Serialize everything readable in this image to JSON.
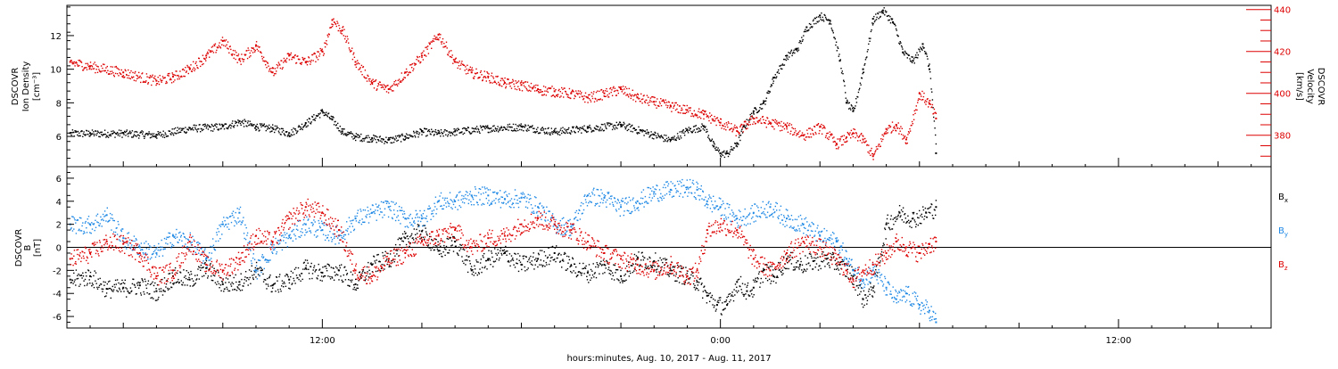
{
  "figure": {
    "xlabel": "hours:minutes, Aug. 10, 2017 - Aug. 11, 2017",
    "x_ticks": [
      {
        "hours": 12,
        "label": "12:00"
      },
      {
        "hours": 24,
        "label": "0:00"
      },
      {
        "hours": 36,
        "label": "12:00"
      }
    ],
    "x_range_hours": [
      4.3,
      40.6
    ]
  },
  "colors": {
    "black": "#000000",
    "red": "#dd0000",
    "blue": "#1e88e5"
  },
  "chart_data": [
    {
      "type": "scatter",
      "panel": "plasma",
      "left_axis": {
        "label_lines": [
          "DSCOVR",
          "Ion Density",
          "[cm⁻³]"
        ],
        "ylim": [
          4.2,
          13.8
        ],
        "ticks": [
          "6",
          "8",
          "10",
          "12"
        ],
        "tick_values": [
          6,
          8,
          10,
          12
        ]
      },
      "right_axis": {
        "label_lines": [
          "DSCOVR",
          "Velocity",
          "[km/s]"
        ],
        "ylim": [
          365,
          442
        ],
        "ticks": [
          "380",
          "400",
          "420",
          "440"
        ],
        "tick_values": [
          380,
          400,
          420,
          440
        ]
      },
      "series": [
        {
          "color": "black",
          "axis": "left",
          "x_hours": [
            4.4,
            5.0,
            6.0,
            7.0,
            8.0,
            9.0,
            9.5,
            10.0,
            10.5,
            11.0,
            11.5,
            12.0,
            12.3,
            12.6,
            13.0,
            13.5,
            14.0,
            14.5,
            15.0,
            15.5,
            16.0,
            17.0,
            18.0,
            19.0,
            20.0,
            21.0,
            22.0,
            22.5,
            23.0,
            23.5,
            23.8,
            24.0,
            24.2,
            24.5,
            24.7,
            25.0,
            25.3,
            25.6,
            26.0,
            26.3,
            26.6,
            27.0,
            27.3,
            27.6,
            27.8,
            28.0,
            28.3,
            28.6,
            28.9,
            29.2,
            29.5,
            29.8,
            30.1,
            30.3,
            30.5
          ],
          "values": [
            6.2,
            6.2,
            6.2,
            6.1,
            6.5,
            6.6,
            6.9,
            6.6,
            6.5,
            6.2,
            6.8,
            7.5,
            7.0,
            6.3,
            6.0,
            5.9,
            5.8,
            6.0,
            6.3,
            6.2,
            6.3,
            6.5,
            6.6,
            6.3,
            6.5,
            6.7,
            6.1,
            5.8,
            6.4,
            6.6,
            5.4,
            5.0,
            5.0,
            5.6,
            6.6,
            7.5,
            8.0,
            9.5,
            10.8,
            11.2,
            12.5,
            13.2,
            12.9,
            10.5,
            8.0,
            7.5,
            10.0,
            13.0,
            13.5,
            12.8,
            11.0,
            10.5,
            11.5,
            10.0,
            5.0
          ]
        },
        {
          "color": "red",
          "axis": "right",
          "x_hours": [
            4.4,
            5.0,
            6.0,
            7.0,
            7.5,
            8.0,
            8.5,
            9.0,
            9.5,
            10.0,
            10.5,
            11.0,
            11.5,
            12.0,
            12.3,
            12.6,
            13.0,
            13.5,
            14.0,
            14.5,
            15.0,
            15.5,
            16.0,
            16.5,
            17.0,
            17.5,
            18.0,
            18.5,
            19.0,
            19.5,
            20.0,
            20.5,
            21.0,
            21.5,
            22.0,
            22.5,
            23.0,
            23.5,
            24.0,
            24.5,
            25.0,
            25.5,
            26.0,
            26.5,
            27.0,
            27.5,
            27.8,
            28.0,
            28.3,
            28.6,
            29.0,
            29.3,
            29.6,
            30.0,
            30.3,
            30.5
          ],
          "values": [
            415,
            413,
            410,
            406,
            408,
            412,
            418,
            425,
            416,
            423,
            410,
            418,
            415,
            420,
            435,
            430,
            415,
            405,
            402,
            410,
            418,
            428,
            415,
            410,
            408,
            405,
            404,
            402,
            401,
            400,
            398,
            400,
            402,
            398,
            396,
            394,
            392,
            390,
            386,
            382,
            388,
            386,
            384,
            380,
            384,
            376,
            379,
            381,
            378,
            370,
            383,
            385,
            378,
            400,
            395,
            388
          ]
        }
      ]
    },
    {
      "type": "scatter",
      "panel": "magnetic",
      "left_axis": {
        "label_lines": [
          "DSCOVR",
          "B",
          "[nT]"
        ],
        "ylim": [
          -7,
          7
        ],
        "ticks": [
          "-6",
          "-4",
          "-2",
          "0",
          "2",
          "4",
          "6"
        ],
        "tick_values": [
          -6,
          -4,
          -2,
          0,
          2,
          4,
          6
        ]
      },
      "zero_line": true,
      "series": [
        {
          "name": "B",
          "sub": "x",
          "color": "black",
          "x_hours": [
            4.4,
            5.0,
            5.5,
            6.0,
            6.5,
            7.0,
            7.5,
            8.0,
            8.5,
            9.0,
            9.5,
            10.0,
            10.5,
            11.0,
            11.5,
            12.0,
            12.5,
            13.0,
            13.5,
            14.0,
            14.5,
            15.0,
            15.5,
            16.0,
            16.5,
            17.0,
            17.5,
            18.0,
            18.5,
            19.0,
            19.5,
            20.0,
            20.5,
            21.0,
            21.5,
            22.0,
            22.5,
            23.0,
            23.3,
            23.6,
            23.9,
            24.2,
            24.5,
            24.8,
            25.0,
            25.3,
            25.6,
            26.0,
            26.4,
            26.8,
            27.2,
            27.6,
            28.0,
            28.3,
            28.6,
            29.0,
            29.4,
            29.8,
            30.2,
            30.5
          ],
          "values": [
            -2.8,
            -2.5,
            -3.6,
            -3.5,
            -3.3,
            -3.8,
            -2.5,
            -2.8,
            -1.8,
            -3.2,
            -3.0,
            -2.0,
            -3.3,
            -2.8,
            -1.8,
            -2.2,
            -2.0,
            -3.2,
            -1.5,
            -1.0,
            0.8,
            1.4,
            -0.3,
            0.5,
            -2.0,
            -1.0,
            -0.5,
            -1.5,
            -1.0,
            -0.5,
            -1.6,
            -2.2,
            -1.5,
            -2.5,
            -1.0,
            -1.2,
            -2.0,
            -2.5,
            -3.0,
            -4.2,
            -5.0,
            -5.0,
            -3.0,
            -3.8,
            -3.5,
            -2.0,
            -2.5,
            -1.0,
            -1.5,
            -1.2,
            -1.0,
            -1.5,
            -2.5,
            -4.5,
            -3.5,
            2.0,
            3.0,
            2.5,
            3.0,
            3.5
          ]
        },
        {
          "name": "B",
          "sub": "y",
          "color": "blue",
          "x_hours": [
            4.4,
            5.0,
            5.5,
            6.0,
            6.5,
            7.0,
            7.5,
            8.0,
            8.5,
            9.0,
            9.5,
            10.0,
            10.5,
            11.0,
            11.5,
            12.0,
            12.5,
            13.0,
            13.5,
            14.0,
            14.5,
            15.0,
            15.5,
            16.0,
            16.5,
            17.0,
            17.5,
            18.0,
            18.5,
            19.0,
            19.5,
            20.0,
            20.5,
            21.0,
            21.5,
            22.0,
            22.5,
            23.0,
            23.3,
            23.6,
            24.0,
            24.5,
            25.0,
            25.5,
            26.0,
            26.5,
            27.0,
            27.5,
            27.8,
            28.0,
            28.3,
            28.6,
            29.0,
            29.3,
            29.6,
            30.0,
            30.3,
            30.5
          ],
          "values": [
            2.0,
            2.0,
            2.8,
            0.8,
            0.0,
            -0.5,
            1.0,
            0.5,
            -1.0,
            2.0,
            3.0,
            -2.0,
            0.0,
            1.0,
            2.0,
            1.5,
            1.0,
            2.5,
            3.0,
            3.5,
            2.5,
            2.5,
            4.0,
            4.0,
            4.5,
            4.5,
            4.2,
            4.3,
            3.5,
            2.0,
            1.8,
            4.5,
            4.3,
            3.5,
            4.0,
            4.8,
            5.0,
            5.2,
            5.0,
            4.0,
            3.5,
            2.5,
            3.0,
            3.5,
            2.5,
            2.0,
            1.0,
            0.5,
            -1.0,
            -2.0,
            -2.8,
            -2.0,
            -3.5,
            -4.5,
            -4.0,
            -5.0,
            -5.5,
            -6.5
          ]
        },
        {
          "name": "B",
          "sub": "z",
          "color": "red",
          "x_hours": [
            4.4,
            5.0,
            5.5,
            6.0,
            6.5,
            7.0,
            7.5,
            8.0,
            8.5,
            9.0,
            9.5,
            10.0,
            10.5,
            11.0,
            11.5,
            12.0,
            12.5,
            13.0,
            13.5,
            14.0,
            14.5,
            15.0,
            15.5,
            16.0,
            16.5,
            17.0,
            17.5,
            18.0,
            18.5,
            19.0,
            19.5,
            20.0,
            20.5,
            21.0,
            21.5,
            22.0,
            22.5,
            23.0,
            23.3,
            23.6,
            24.0,
            24.5,
            25.0,
            25.5,
            26.0,
            26.5,
            27.0,
            27.5,
            27.8,
            28.0,
            28.3,
            28.6,
            29.0,
            29.3,
            29.6,
            30.0,
            30.3,
            30.5
          ],
          "values": [
            -1.0,
            -0.5,
            0.5,
            0.3,
            -0.5,
            -2.5,
            -2.0,
            0.5,
            -1.5,
            -2.0,
            -1.0,
            1.0,
            0.5,
            2.5,
            3.5,
            3.0,
            1.5,
            -2.0,
            -2.5,
            -1.0,
            -0.5,
            0.5,
            1.0,
            1.5,
            0.0,
            0.8,
            1.0,
            2.0,
            2.5,
            2.0,
            1.5,
            0.5,
            -0.5,
            -1.0,
            -1.5,
            -2.0,
            -1.5,
            -2.5,
            -2.0,
            1.5,
            2.0,
            1.5,
            -1.0,
            -2.0,
            -0.5,
            0.5,
            0.0,
            -1.0,
            -2.0,
            -2.8,
            -2.0,
            -1.5,
            -0.5,
            0.5,
            0.0,
            -0.5,
            0.3,
            0.5
          ]
        }
      ]
    }
  ]
}
